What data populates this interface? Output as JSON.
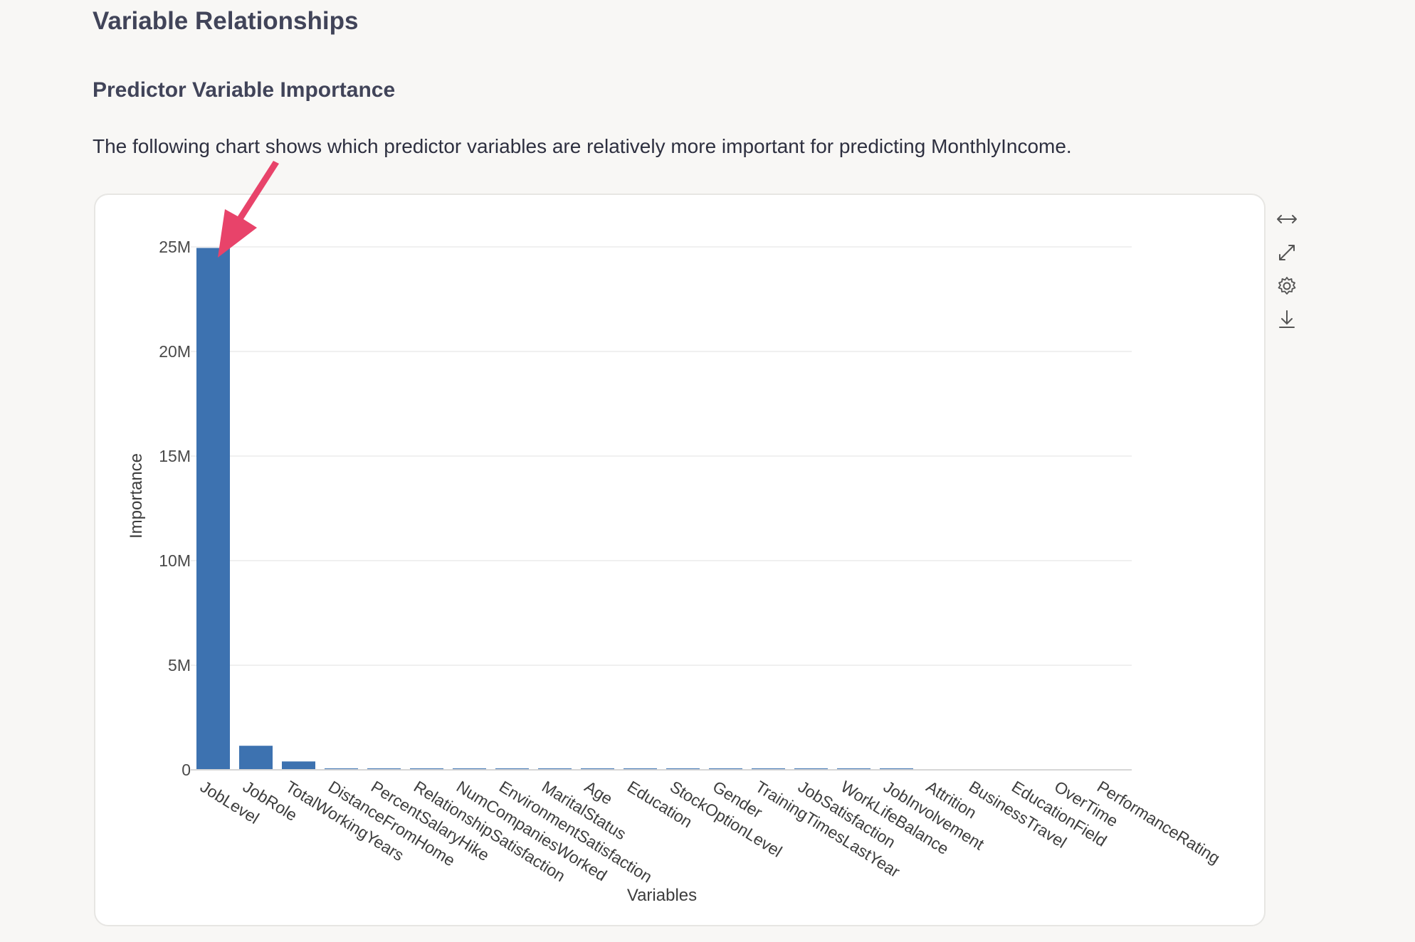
{
  "page": {
    "title": "Variable Relationships",
    "subtitle": "Predictor Variable Importance",
    "description": "The following chart shows which predictor variables are relatively more important for predicting MonthlyIncome."
  },
  "toolbar": {
    "icons": [
      "horizontal-expand-icon",
      "fullscreen-icon",
      "settings-gear-icon",
      "download-icon"
    ]
  },
  "annotation": {
    "color": "#e8436a"
  },
  "chart_data": {
    "type": "bar",
    "title": "",
    "xlabel": "Variables",
    "ylabel": "Importance",
    "ylim": [
      0,
      25000000
    ],
    "yticks": [
      0,
      5000000,
      10000000,
      15000000,
      20000000,
      25000000
    ],
    "ytick_labels": [
      "0",
      "5M",
      "10M",
      "15M",
      "20M",
      "25M"
    ],
    "grid": true,
    "bar_color": "#3d72b0",
    "categories": [
      "JobLevel",
      "JobRole",
      "TotalWorkingYears",
      "DistanceFromHome",
      "PercentSalaryHike",
      "RelationshipSatisfaction",
      "NumCompaniesWorked",
      "EnvironmentSatisfaction",
      "MaritalStatus",
      "Age",
      "Education",
      "StockOptionLevel",
      "Gender",
      "TrainingTimesLastYear",
      "JobSatisfaction",
      "WorkLifeBalance",
      "JobInvolvement",
      "Attrition",
      "BusinessTravel",
      "EducationField",
      "OverTime",
      "PerformanceRating"
    ],
    "values": [
      24950000,
      1150000,
      400000,
      60000,
      55000,
      52000,
      50000,
      48000,
      46000,
      44000,
      42000,
      40000,
      38000,
      36000,
      34000,
      32000,
      30000,
      0,
      0,
      0,
      0,
      0
    ]
  }
}
